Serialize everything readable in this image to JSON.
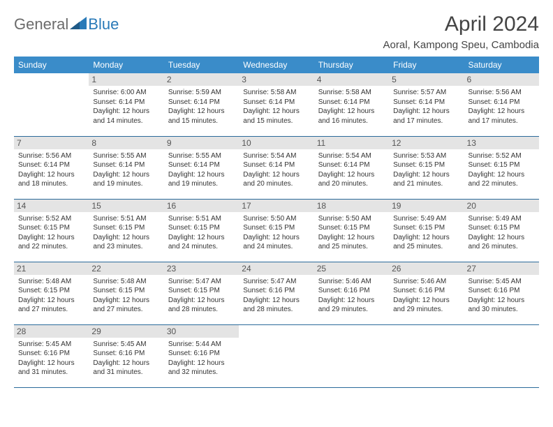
{
  "brand": {
    "text1": "General",
    "text2": "Blue"
  },
  "title": "April 2024",
  "location": "Aoral, Kampong Speu, Cambodia",
  "colors": {
    "header_bg": "#3a8cc9",
    "header_text": "#ffffff",
    "daynum_bg": "#e4e4e4",
    "row_border": "#2a6a9a",
    "brand_gray": "#6b6b6b",
    "brand_blue": "#2a7ab8"
  },
  "weekdays": [
    "Sunday",
    "Monday",
    "Tuesday",
    "Wednesday",
    "Thursday",
    "Friday",
    "Saturday"
  ],
  "weeks": [
    [
      null,
      {
        "day": "1",
        "sunrise": "6:00 AM",
        "sunset": "6:14 PM",
        "daylight": "12 hours and 14 minutes."
      },
      {
        "day": "2",
        "sunrise": "5:59 AM",
        "sunset": "6:14 PM",
        "daylight": "12 hours and 15 minutes."
      },
      {
        "day": "3",
        "sunrise": "5:58 AM",
        "sunset": "6:14 PM",
        "daylight": "12 hours and 15 minutes."
      },
      {
        "day": "4",
        "sunrise": "5:58 AM",
        "sunset": "6:14 PM",
        "daylight": "12 hours and 16 minutes."
      },
      {
        "day": "5",
        "sunrise": "5:57 AM",
        "sunset": "6:14 PM",
        "daylight": "12 hours and 17 minutes."
      },
      {
        "day": "6",
        "sunrise": "5:56 AM",
        "sunset": "6:14 PM",
        "daylight": "12 hours and 17 minutes."
      }
    ],
    [
      {
        "day": "7",
        "sunrise": "5:56 AM",
        "sunset": "6:14 PM",
        "daylight": "12 hours and 18 minutes."
      },
      {
        "day": "8",
        "sunrise": "5:55 AM",
        "sunset": "6:14 PM",
        "daylight": "12 hours and 19 minutes."
      },
      {
        "day": "9",
        "sunrise": "5:55 AM",
        "sunset": "6:14 PM",
        "daylight": "12 hours and 19 minutes."
      },
      {
        "day": "10",
        "sunrise": "5:54 AM",
        "sunset": "6:14 PM",
        "daylight": "12 hours and 20 minutes."
      },
      {
        "day": "11",
        "sunrise": "5:54 AM",
        "sunset": "6:14 PM",
        "daylight": "12 hours and 20 minutes."
      },
      {
        "day": "12",
        "sunrise": "5:53 AM",
        "sunset": "6:15 PM",
        "daylight": "12 hours and 21 minutes."
      },
      {
        "day": "13",
        "sunrise": "5:52 AM",
        "sunset": "6:15 PM",
        "daylight": "12 hours and 22 minutes."
      }
    ],
    [
      {
        "day": "14",
        "sunrise": "5:52 AM",
        "sunset": "6:15 PM",
        "daylight": "12 hours and 22 minutes."
      },
      {
        "day": "15",
        "sunrise": "5:51 AM",
        "sunset": "6:15 PM",
        "daylight": "12 hours and 23 minutes."
      },
      {
        "day": "16",
        "sunrise": "5:51 AM",
        "sunset": "6:15 PM",
        "daylight": "12 hours and 24 minutes."
      },
      {
        "day": "17",
        "sunrise": "5:50 AM",
        "sunset": "6:15 PM",
        "daylight": "12 hours and 24 minutes."
      },
      {
        "day": "18",
        "sunrise": "5:50 AM",
        "sunset": "6:15 PM",
        "daylight": "12 hours and 25 minutes."
      },
      {
        "day": "19",
        "sunrise": "5:49 AM",
        "sunset": "6:15 PM",
        "daylight": "12 hours and 25 minutes."
      },
      {
        "day": "20",
        "sunrise": "5:49 AM",
        "sunset": "6:15 PM",
        "daylight": "12 hours and 26 minutes."
      }
    ],
    [
      {
        "day": "21",
        "sunrise": "5:48 AM",
        "sunset": "6:15 PM",
        "daylight": "12 hours and 27 minutes."
      },
      {
        "day": "22",
        "sunrise": "5:48 AM",
        "sunset": "6:15 PM",
        "daylight": "12 hours and 27 minutes."
      },
      {
        "day": "23",
        "sunrise": "5:47 AM",
        "sunset": "6:15 PM",
        "daylight": "12 hours and 28 minutes."
      },
      {
        "day": "24",
        "sunrise": "5:47 AM",
        "sunset": "6:16 PM",
        "daylight": "12 hours and 28 minutes."
      },
      {
        "day": "25",
        "sunrise": "5:46 AM",
        "sunset": "6:16 PM",
        "daylight": "12 hours and 29 minutes."
      },
      {
        "day": "26",
        "sunrise": "5:46 AM",
        "sunset": "6:16 PM",
        "daylight": "12 hours and 29 minutes."
      },
      {
        "day": "27",
        "sunrise": "5:45 AM",
        "sunset": "6:16 PM",
        "daylight": "12 hours and 30 minutes."
      }
    ],
    [
      {
        "day": "28",
        "sunrise": "5:45 AM",
        "sunset": "6:16 PM",
        "daylight": "12 hours and 31 minutes."
      },
      {
        "day": "29",
        "sunrise": "5:45 AM",
        "sunset": "6:16 PM",
        "daylight": "12 hours and 31 minutes."
      },
      {
        "day": "30",
        "sunrise": "5:44 AM",
        "sunset": "6:16 PM",
        "daylight": "12 hours and 32 minutes."
      },
      null,
      null,
      null,
      null
    ]
  ],
  "labels": {
    "sunrise": "Sunrise:",
    "sunset": "Sunset:",
    "daylight": "Daylight:"
  }
}
